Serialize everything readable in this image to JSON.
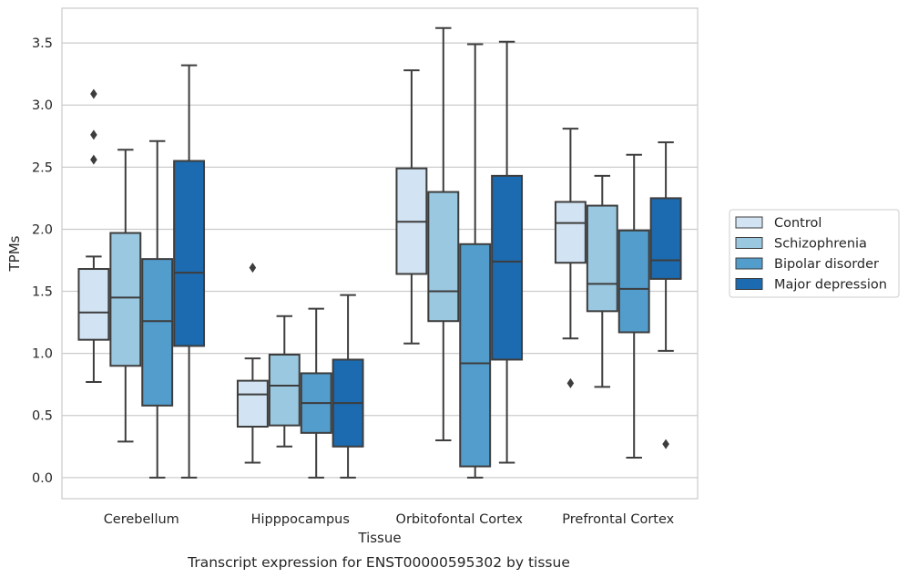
{
  "chart_data": {
    "type": "box",
    "xlabel": "Tissue",
    "ylabel": "TPMs",
    "ylim": [
      -0.17,
      3.78
    ],
    "yticks": [
      "0.0",
      "0.5",
      "1.0",
      "1.5",
      "2.0",
      "2.5",
      "3.0",
      "3.5"
    ],
    "categories": [
      "Cerebellum",
      "Hipppocampus",
      "Orbitofontal Cortex",
      "Prefrontal Cortex"
    ],
    "grid": "horizontal",
    "legend_position": "right",
    "series": [
      {
        "name": "Control",
        "color": "#d2e3f3",
        "boxes": [
          {
            "whisker_low": 0.77,
            "q1": 1.11,
            "median": 1.33,
            "q3": 1.68,
            "whisker_high": 1.78,
            "outliers": [
              3.09,
              2.76,
              2.56
            ]
          },
          {
            "whisker_low": 0.12,
            "q1": 0.41,
            "median": 0.67,
            "q3": 0.78,
            "whisker_high": 0.96,
            "outliers": [
              1.69
            ]
          },
          {
            "whisker_low": 1.08,
            "q1": 1.64,
            "median": 2.06,
            "q3": 2.49,
            "whisker_high": 3.28,
            "outliers": []
          },
          {
            "whisker_low": 1.12,
            "q1": 1.73,
            "median": 2.05,
            "q3": 2.22,
            "whisker_high": 2.81,
            "outliers": [
              0.76
            ]
          }
        ]
      },
      {
        "name": "Schizophrenia",
        "color": "#9ac8e0",
        "boxes": [
          {
            "whisker_low": 0.29,
            "q1": 0.9,
            "median": 1.45,
            "q3": 1.97,
            "whisker_high": 2.64,
            "outliers": []
          },
          {
            "whisker_low": 0.25,
            "q1": 0.42,
            "median": 0.74,
            "q3": 0.99,
            "whisker_high": 1.3,
            "outliers": []
          },
          {
            "whisker_low": 0.3,
            "q1": 1.26,
            "median": 1.5,
            "q3": 2.3,
            "whisker_high": 3.62,
            "outliers": []
          },
          {
            "whisker_low": 0.73,
            "q1": 1.34,
            "median": 1.56,
            "q3": 2.19,
            "whisker_high": 2.43,
            "outliers": []
          }
        ]
      },
      {
        "name": "Bipolar disorder",
        "color": "#529dcc",
        "boxes": [
          {
            "whisker_low": 0.0,
            "q1": 0.58,
            "median": 1.26,
            "q3": 1.76,
            "whisker_high": 2.71,
            "outliers": []
          },
          {
            "whisker_low": 0.0,
            "q1": 0.36,
            "median": 0.6,
            "q3": 0.84,
            "whisker_high": 1.36,
            "outliers": []
          },
          {
            "whisker_low": 0.0,
            "q1": 0.09,
            "median": 0.92,
            "q3": 1.88,
            "whisker_high": 3.49,
            "outliers": []
          },
          {
            "whisker_low": 0.16,
            "q1": 1.17,
            "median": 1.52,
            "q3": 1.99,
            "whisker_high": 2.6,
            "outliers": []
          }
        ]
      },
      {
        "name": "Major depression",
        "color": "#1c6aaf",
        "boxes": [
          {
            "whisker_low": 0.0,
            "q1": 1.06,
            "median": 1.65,
            "q3": 2.55,
            "whisker_high": 3.32,
            "outliers": []
          },
          {
            "whisker_low": 0.0,
            "q1": 0.25,
            "median": 0.6,
            "q3": 0.95,
            "whisker_high": 1.47,
            "outliers": []
          },
          {
            "whisker_low": 0.12,
            "q1": 0.95,
            "median": 1.74,
            "q3": 2.43,
            "whisker_high": 3.51,
            "outliers": []
          },
          {
            "whisker_low": 1.02,
            "q1": 1.6,
            "median": 1.75,
            "q3": 2.25,
            "whisker_high": 2.7,
            "outliers": [
              0.27
            ]
          }
        ]
      }
    ]
  },
  "caption": "Transcript expression for ENST00000595302 by tissue"
}
